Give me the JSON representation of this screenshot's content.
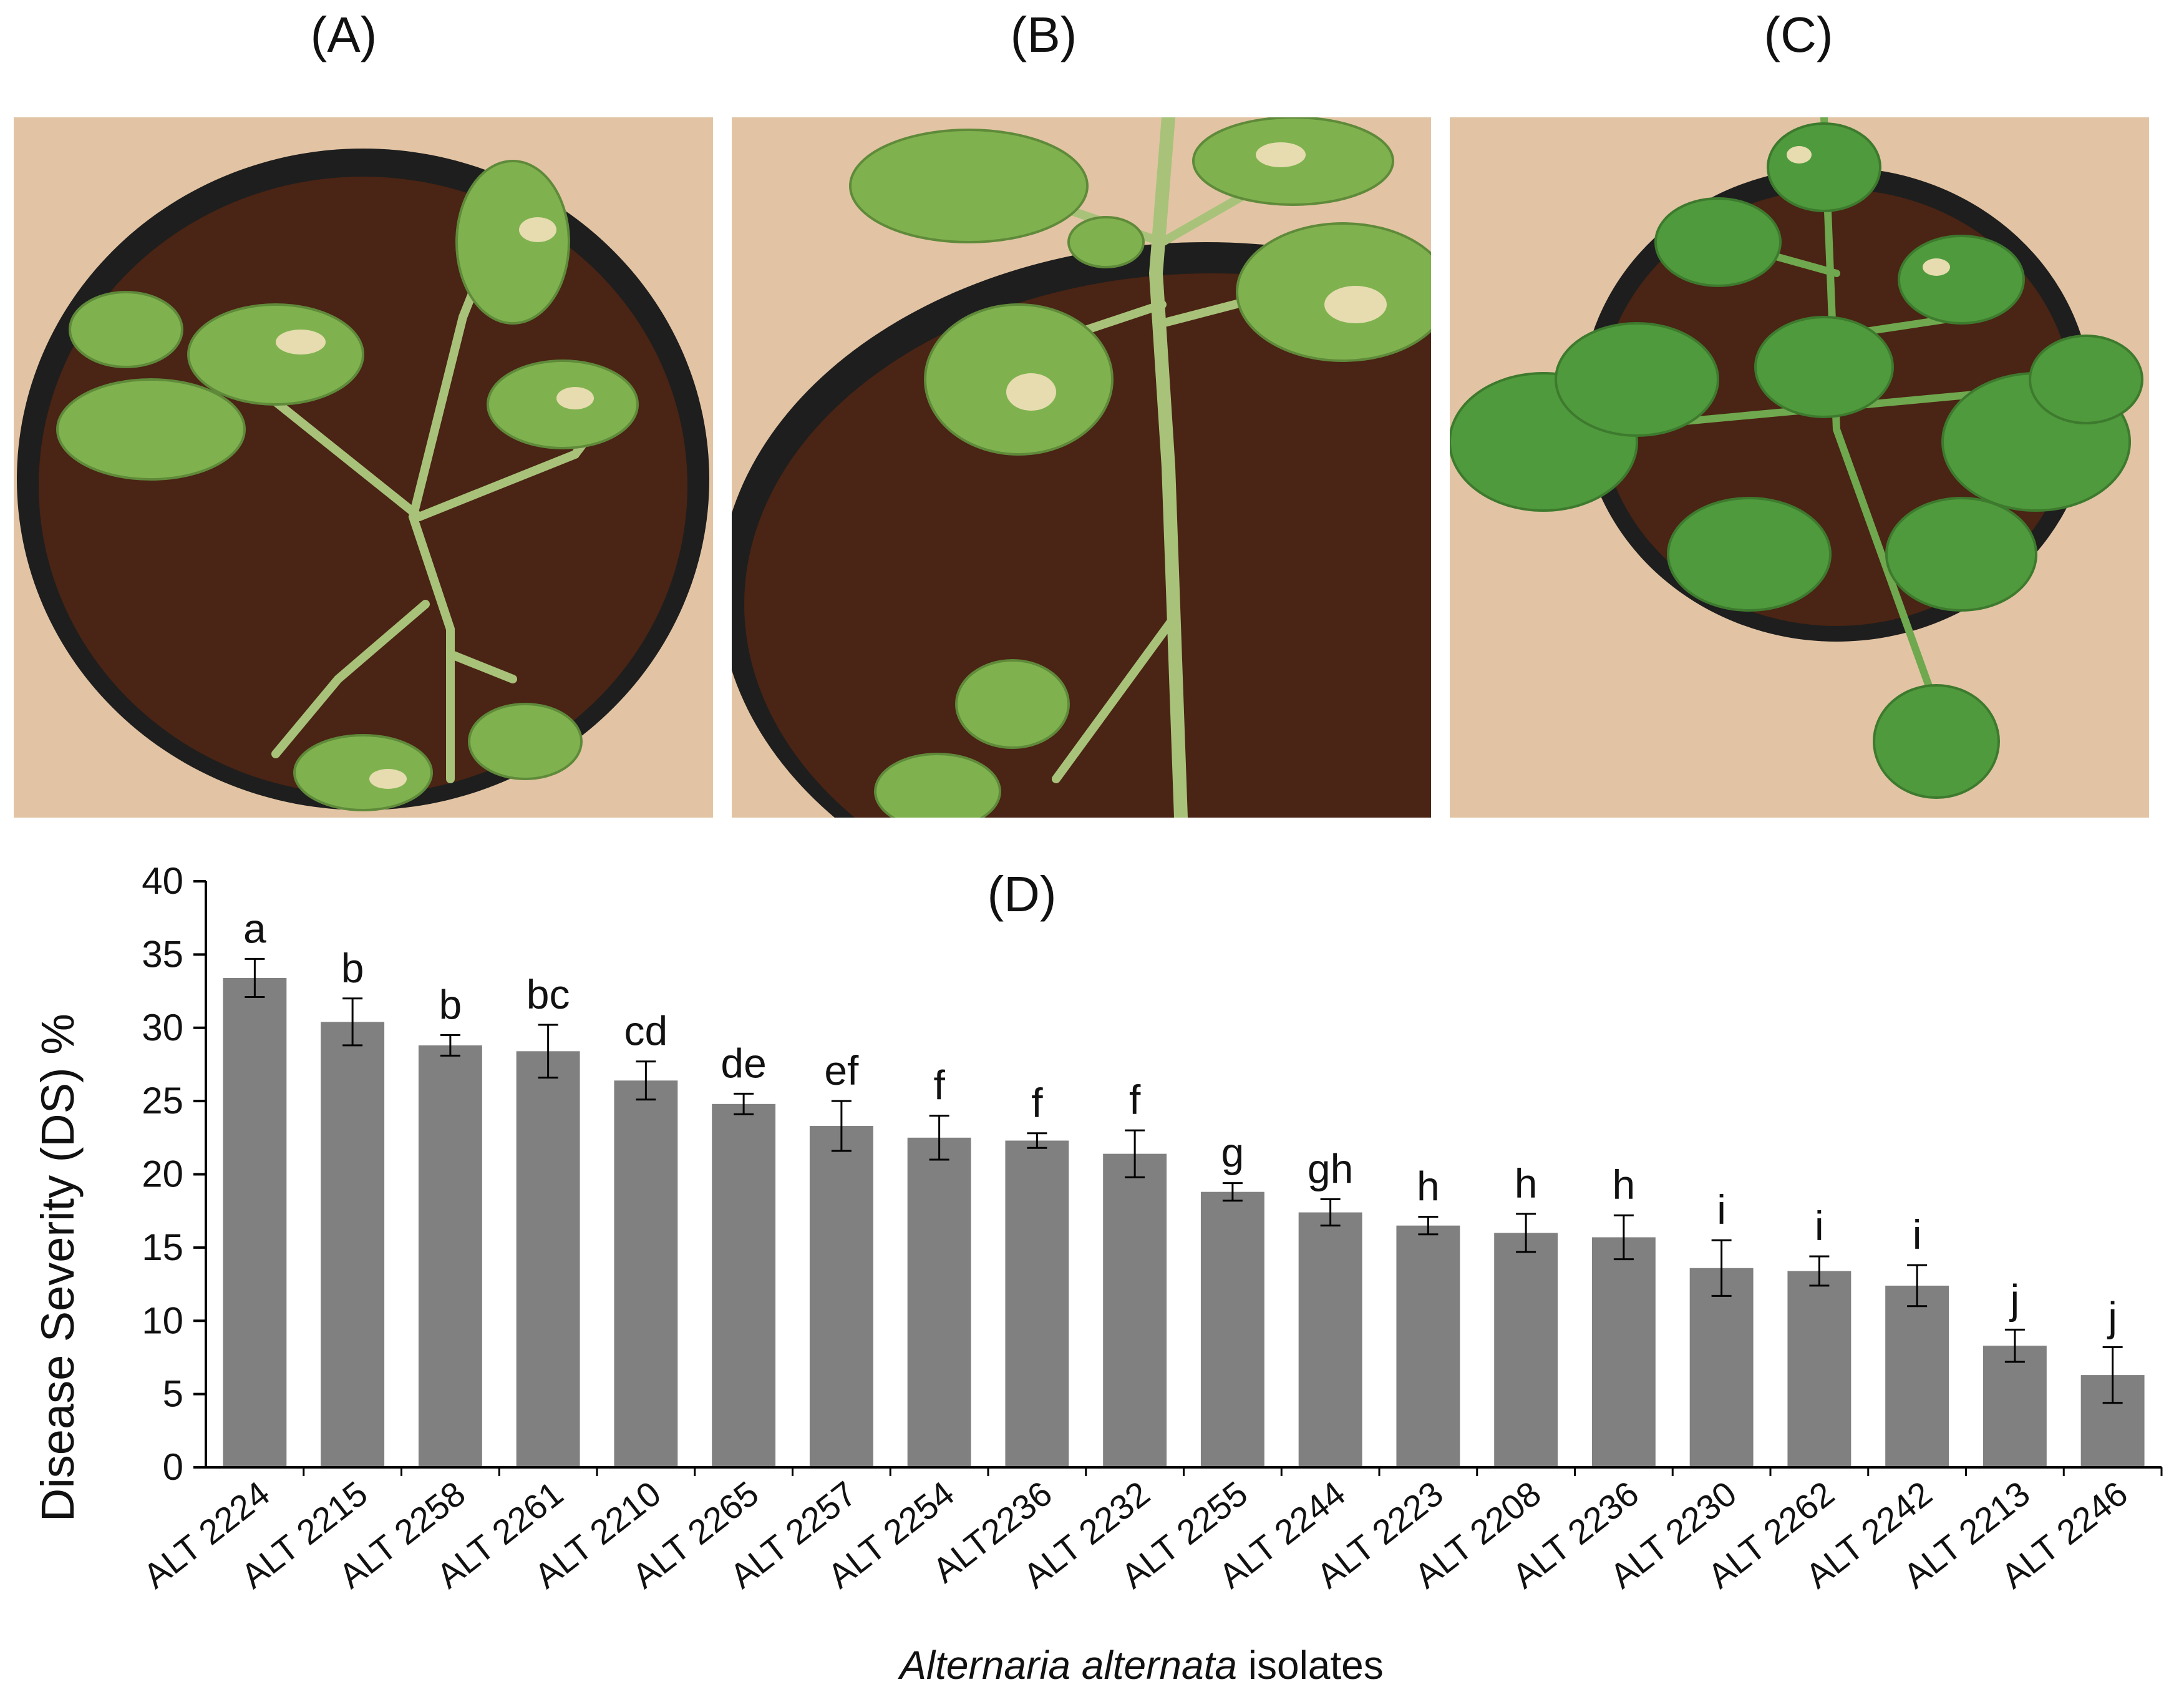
{
  "panels": {
    "a_label": "(A)",
    "b_label": "(B)",
    "c_label": "(C)"
  },
  "colors": {
    "bar": "#808080",
    "axis": "#000000",
    "soil": "#4a2414",
    "pot_rim": "#1e1e1e",
    "sand": "#e2c4a4",
    "leaf": "#7fb24e",
    "healthy_leaf": "#4f9a3c",
    "lesion": "#e6dcb0"
  },
  "chart_data": {
    "type": "bar",
    "panel_label": "(D)",
    "ylabel": "Disease Severity (DS) %",
    "xlabel_italic": "Alternaria alternata",
    "xlabel_rest": " isolates",
    "ylim": [
      0,
      40
    ],
    "yticks": [
      "0",
      "5",
      "10",
      "15",
      "20",
      "25",
      "30",
      "35",
      "40"
    ],
    "categories": [
      "ALT 2224",
      "ALT 2215",
      "ALT 2258",
      "ALT 2261",
      "ALT 2210",
      "ALT 2265",
      "ALT 2257",
      "ALT 2254",
      "ALT2236",
      "ALT 2232",
      "ALT 2255",
      "ALT 2244",
      "ALT 2223",
      "ALT 2208",
      "ALT 2236",
      "ALT 2230",
      "ALT 2262",
      "ALT 2242",
      "ALT 2213",
      "ALT 2246"
    ],
    "values": [
      33.4,
      30.4,
      28.8,
      28.4,
      26.4,
      24.8,
      23.3,
      22.5,
      22.3,
      21.4,
      18.8,
      17.4,
      16.5,
      16.0,
      15.7,
      13.6,
      13.4,
      12.4,
      8.3,
      6.3
    ],
    "errors": [
      1.3,
      1.6,
      0.7,
      1.8,
      1.3,
      0.7,
      1.7,
      1.5,
      0.5,
      1.6,
      0.6,
      0.9,
      0.6,
      1.3,
      1.5,
      1.9,
      1.0,
      1.4,
      1.1,
      1.9
    ],
    "significance": [
      "a",
      "b",
      "b",
      "bc",
      "cd",
      "de",
      "ef",
      "f",
      "f",
      "f",
      "g",
      "gh",
      "h",
      "h",
      "h",
      "i",
      "i",
      "i",
      "j",
      "j"
    ]
  }
}
